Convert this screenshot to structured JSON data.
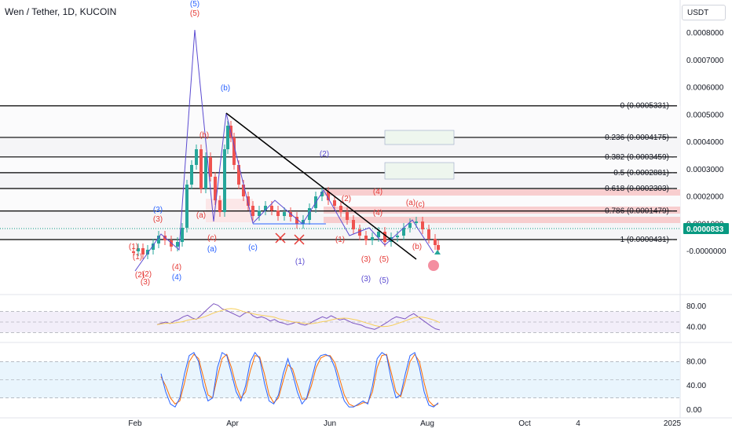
{
  "header": {
    "title": "Wen / Tether, 1D, KUCOIN",
    "currency": "USDT"
  },
  "colors": {
    "candle_up": "#26a69a",
    "candle_down": "#ef5350",
    "wave_blue": "#2962ff",
    "wave_red": "#e53935",
    "wave_purple": "#5b4bd1",
    "fib_line": "#000000",
    "last_price_badge": "#089981",
    "rsi_band": "#ede7f6",
    "stoch_band": "#e3f2fd",
    "rsi_line": "#7e57c2",
    "rsi_ma": "#f7cf5b",
    "stoch_k": "#2962ff",
    "stoch_d": "#ff6d00"
  },
  "chart_data": [
    {
      "type": "line",
      "price_axis": {
        "labels": [
          "0.0008000",
          "0.0007000",
          "0.0006000",
          "0.0005000",
          "0.0004000",
          "0.0003000",
          "0.0002000",
          "0.0001000",
          "-0.0000000"
        ],
        "values": [
          0.0008,
          0.0007,
          0.0006,
          0.0005,
          0.0004,
          0.0003,
          0.0002,
          0.0001,
          0.0
        ],
        "last_price_label": "0.0000833",
        "last_price": 8.33e-05
      },
      "time_axis": {
        "labels": [
          "Feb",
          "Apr",
          "Jun",
          "Aug",
          "Oct",
          "4",
          "2025"
        ]
      },
      "fib_levels": [
        {
          "ratio": 0,
          "label": "0 (0.0005331)",
          "price": 0.0005331
        },
        {
          "ratio": 0.236,
          "label": "0.236 (0.0004175)",
          "price": 0.0004175
        },
        {
          "ratio": 0.382,
          "label": "0.382 (0.0003459)",
          "price": 0.0003459
        },
        {
          "ratio": 0.5,
          "label": "0.5 (0.0002881)",
          "price": 0.0002881
        },
        {
          "ratio": 0.618,
          "label": "0.618 (0.0002303)",
          "price": 0.0002303
        },
        {
          "ratio": 0.786,
          "label": "0.786 (0.0001479)",
          "price": 0.0001479
        },
        {
          "ratio": 1,
          "label": "1 (0.0000431)",
          "price": 4.31e-05
        }
      ],
      "wave_labels": [
        {
          "text": "(5)",
          "color": "blue"
        },
        {
          "text": "(5)",
          "color": "red"
        },
        {
          "text": "(b)",
          "color": "blue"
        },
        {
          "text": "(b)",
          "color": "red"
        },
        {
          "text": "(3)",
          "color": "blue"
        },
        {
          "text": "(3)",
          "color": "red"
        },
        {
          "text": "(a)",
          "color": "red"
        },
        {
          "text": "(c)",
          "color": "red"
        },
        {
          "text": "(a)",
          "color": "blue"
        },
        {
          "text": "(c)",
          "color": "blue"
        },
        {
          "text": "(1)",
          "color": "red"
        },
        {
          "text": "(2)",
          "color": "red"
        },
        {
          "text": "(4)",
          "color": "red"
        },
        {
          "text": "(4)",
          "color": "blue"
        },
        {
          "text": "(2)",
          "color": "purple"
        },
        {
          "text": "(4)",
          "color": "red"
        },
        {
          "text": "(4)",
          "color": "red"
        },
        {
          "text": "(2)",
          "color": "red"
        },
        {
          "text": "(1)",
          "color": "red"
        },
        {
          "text": "(3)",
          "color": "red"
        },
        {
          "text": "(5)",
          "color": "red"
        },
        {
          "text": "(1)",
          "color": "purple"
        },
        {
          "text": "(3)",
          "color": "purple"
        },
        {
          "text": "(5)",
          "color": "purple"
        },
        {
          "text": "(a)",
          "color": "red"
        },
        {
          "text": "(c)",
          "color": "red"
        },
        {
          "text": "(b)",
          "color": "red"
        },
        {
          "text": "(1)",
          "color": "red"
        },
        {
          "text": "(2)",
          "color": "red"
        },
        {
          "text": "(3)",
          "color": "red"
        }
      ]
    },
    {
      "type": "line",
      "name": "RSI",
      "axis_labels": [
        "80.00",
        "40.00"
      ],
      "axis_values": [
        80,
        40
      ],
      "band": [
        30,
        70
      ],
      "values": [
        45,
        48,
        50,
        47,
        52,
        55,
        60,
        63,
        58,
        55,
        62,
        70,
        78,
        85,
        82,
        75,
        72,
        68,
        64,
        60,
        66,
        70,
        62,
        58,
        60,
        57,
        52,
        55,
        50,
        48,
        45,
        47,
        50,
        46,
        44,
        47,
        52,
        56,
        60,
        57,
        62,
        58,
        54,
        56,
        52,
        48,
        46,
        44,
        40,
        38,
        36,
        40,
        45,
        50,
        56,
        60,
        58,
        56,
        62,
        66,
        60,
        54,
        48,
        42,
        37,
        35
      ]
    },
    {
      "type": "line",
      "name": "Stoch RSI",
      "axis_labels": [
        "80.00",
        "40.00",
        "0.00"
      ],
      "axis_values": [
        80,
        40,
        0
      ],
      "band": [
        20,
        80
      ],
      "k_values": [
        60,
        30,
        10,
        5,
        20,
        60,
        90,
        95,
        80,
        40,
        15,
        20,
        70,
        95,
        90,
        60,
        30,
        15,
        40,
        80,
        95,
        85,
        45,
        15,
        10,
        25,
        60,
        85,
        60,
        30,
        10,
        20,
        50,
        80,
        90,
        92,
        88,
        70,
        40,
        15,
        5,
        5,
        10,
        15,
        10,
        40,
        85,
        95,
        90,
        50,
        20,
        25,
        60,
        90,
        95,
        70,
        30,
        8,
        5,
        12
      ],
      "d_values": [
        55,
        40,
        20,
        10,
        15,
        45,
        80,
        92,
        85,
        55,
        25,
        20,
        55,
        85,
        92,
        70,
        40,
        20,
        30,
        65,
        90,
        88,
        60,
        25,
        12,
        20,
        48,
        75,
        68,
        42,
        18,
        18,
        40,
        70,
        86,
        90,
        90,
        78,
        52,
        25,
        10,
        6,
        8,
        12,
        12,
        30,
        70,
        90,
        92,
        62,
        30,
        22,
        48,
        80,
        92,
        80,
        45,
        15,
        7,
        10
      ]
    }
  ]
}
